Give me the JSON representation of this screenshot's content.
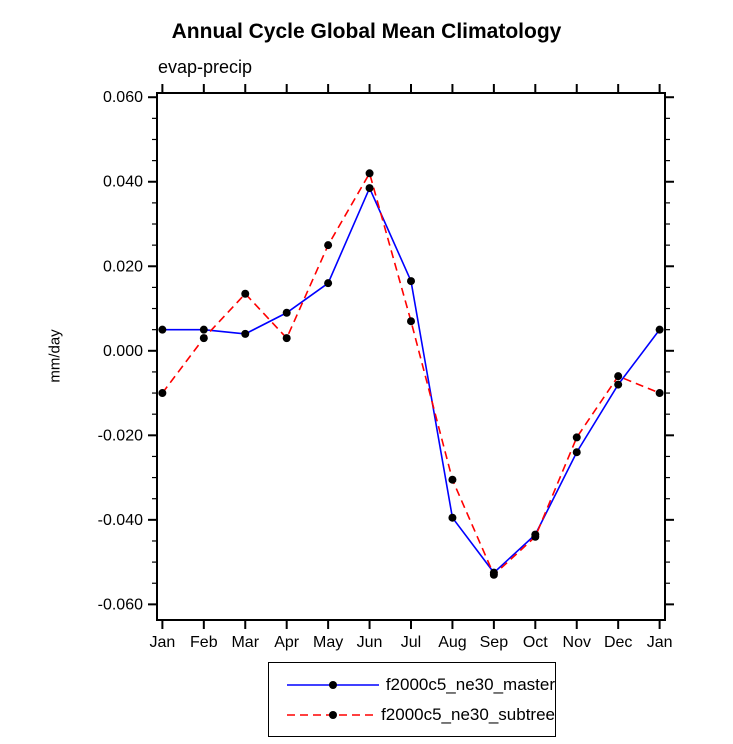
{
  "chart_data": {
    "type": "line",
    "title": "Annual Cycle Global Mean Climatology",
    "subtitle": "evap-precip",
    "ylabel": "mm/day",
    "xlabel": "",
    "categories": [
      "Jan",
      "Feb",
      "Mar",
      "Apr",
      "May",
      "Jun",
      "Jul",
      "Aug",
      "Sep",
      "Oct",
      "Nov",
      "Dec",
      "Jan"
    ],
    "ylim": [
      -0.06,
      0.06
    ],
    "yticks": [
      0.06,
      0.04,
      0.02,
      0.0,
      -0.02,
      -0.04,
      -0.06
    ],
    "ytick_labels": [
      "0.060",
      "0.040",
      "0.020",
      "0.000",
      "-0.020",
      "-0.040",
      "-0.060"
    ],
    "grid": false,
    "legend_position": "bottom",
    "axis_color": "#000000",
    "marker_shape": "filled-circle",
    "series": [
      {
        "name": "f2000c5_ne30_master",
        "color": "#0000ff",
        "line_style": "solid",
        "marker_color": "#000000",
        "values": [
          0.005,
          0.005,
          0.004,
          0.009,
          0.016,
          0.0385,
          0.0165,
          -0.0395,
          -0.0525,
          -0.0435,
          -0.024,
          -0.008,
          0.005
        ]
      },
      {
        "name": "f2000c5_ne30_subtree",
        "color": "#ff0000",
        "line_style": "dashed",
        "marker_color": "#000000",
        "values": [
          -0.01,
          0.003,
          0.0135,
          0.003,
          0.025,
          0.042,
          0.007,
          -0.0305,
          -0.053,
          -0.044,
          -0.0205,
          -0.006,
          -0.01
        ]
      }
    ]
  }
}
